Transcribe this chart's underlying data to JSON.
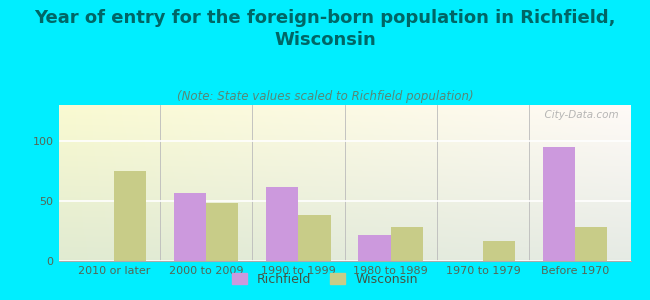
{
  "title": "Year of entry for the foreign-born population in Richfield,\nWisconsin",
  "subtitle": "(Note: State values scaled to Richfield population)",
  "categories": [
    "2010 or later",
    "2000 to 2009",
    "1990 to 1999",
    "1980 to 1989",
    "1970 to 1979",
    "Before 1970"
  ],
  "richfield_values": [
    0,
    57,
    62,
    22,
    0,
    95
  ],
  "wisconsin_values": [
    75,
    48,
    38,
    28,
    17,
    28
  ],
  "richfield_color": "#cc99dd",
  "wisconsin_color": "#c8cc88",
  "background_color": "#00eeff",
  "title_color": "#006666",
  "subtitle_color": "#558877",
  "title_fontsize": 13,
  "subtitle_fontsize": 8.5,
  "tick_fontsize": 8,
  "legend_fontsize": 9,
  "yticks": [
    0,
    50,
    100
  ],
  "ylim": [
    0,
    130
  ],
  "bar_width": 0.35,
  "watermark": "  City-Data.com"
}
